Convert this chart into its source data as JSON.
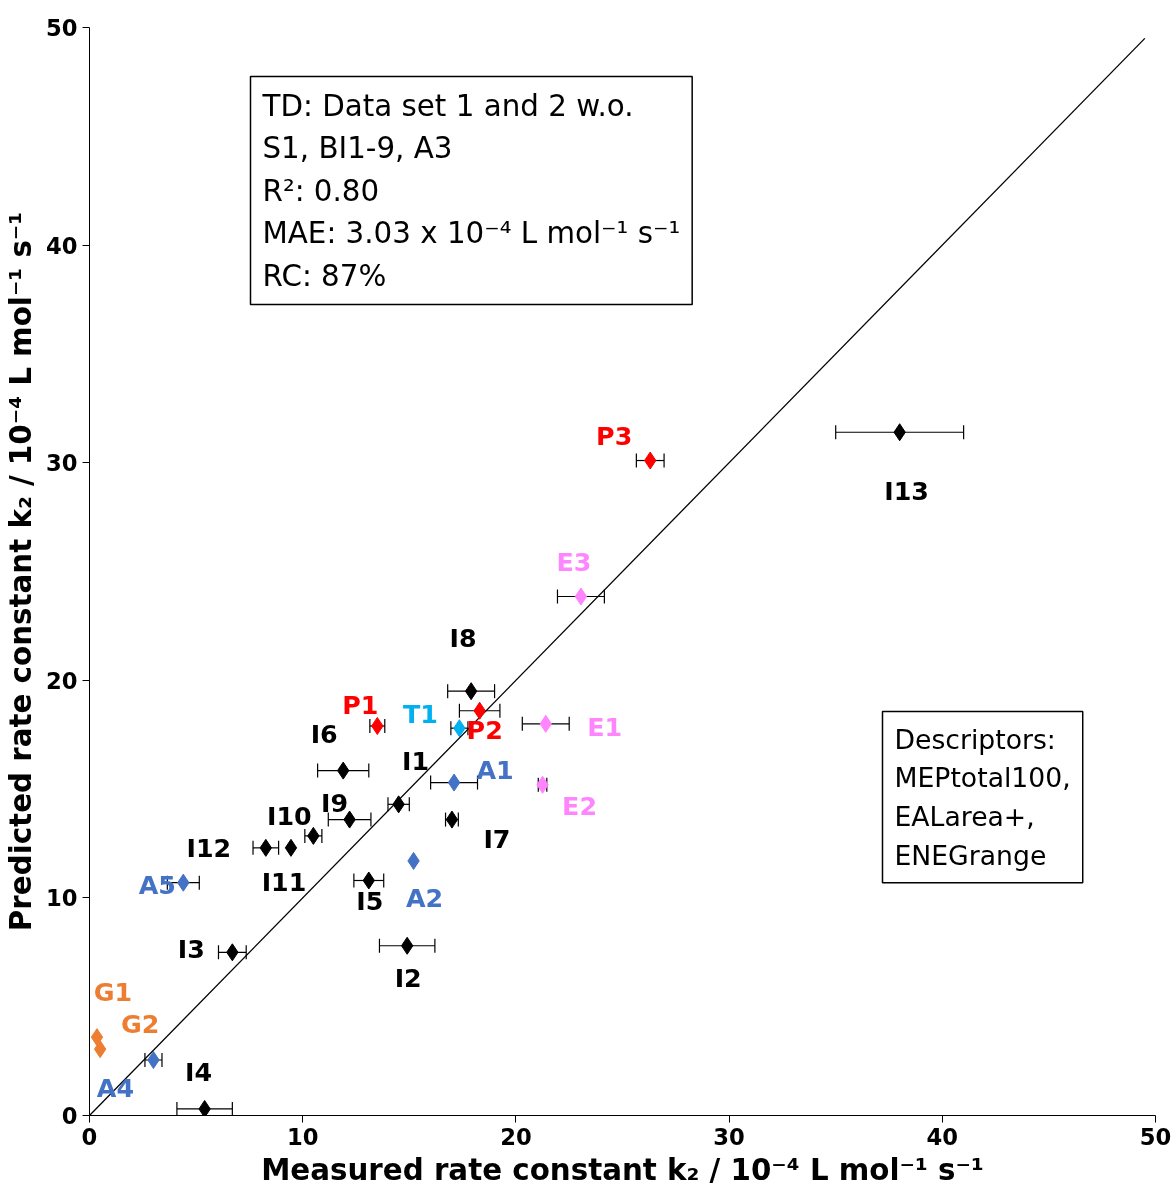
{
  "chart_data": {
    "type": "scatter",
    "xlabel": "Measured rate constant k₂ / 10⁻⁴ L mol⁻¹ s⁻¹",
    "ylabel": "Predicted rate constant k₂ / 10⁻⁴ L mol⁻¹ s⁻¹",
    "xlim": [
      0,
      50
    ],
    "ylim": [
      0,
      50
    ],
    "xticks": [
      0,
      10,
      20,
      30,
      40,
      50
    ],
    "yticks": [
      0,
      10,
      20,
      30,
      40,
      50
    ],
    "grid": false,
    "marker": "diamond",
    "series": [
      {
        "type": "line",
        "marker": "none",
        "color": "#000000",
        "x": [
          0,
          49.5
        ],
        "values": [
          0,
          49.5
        ]
      },
      {
        "color": "#000000",
        "x": [
          38.0,
          17.9,
          11.9,
          14.5,
          12.2,
          10.5,
          17.0,
          8.27,
          9.45,
          13.1,
          6.7,
          14.9,
          5.4
        ],
        "values": [
          31.4,
          19.5,
          15.85,
          14.3,
          13.6,
          12.85,
          13.6,
          12.3,
          12.3,
          10.8,
          7.5,
          7.8,
          0.3
        ],
        "xerrors": [
          3.0,
          1.1,
          1.2,
          0.5,
          1.0,
          0.4,
          0.3,
          0.6,
          null,
          0.7,
          0.65,
          1.3,
          1.3
        ]
      },
      {
        "color": "#ff0000",
        "x": [
          26.3,
          13.5,
          18.3
        ],
        "values": [
          30.1,
          17.9,
          18.6
        ],
        "xerrors": [
          0.65,
          0.35,
          0.95
        ]
      },
      {
        "color": "#00b0f0",
        "x": [
          17.35
        ],
        "values": [
          17.8
        ],
        "xerrors": [
          0.4
        ]
      },
      {
        "color": "#4472c4",
        "x": [
          17.1,
          4.4,
          15.2,
          3.0
        ],
        "values": [
          15.3,
          10.7,
          11.7,
          2.55
        ],
        "xerrors": [
          1.1,
          0.75,
          null,
          0.4
        ]
      },
      {
        "color": "#ff85ff",
        "x": [
          23.05,
          21.4,
          21.25
        ],
        "values": [
          23.85,
          18.0,
          15.2
        ],
        "xerrors": [
          1.1,
          1.1,
          0.2
        ]
      },
      {
        "color": "#ed7d31",
        "x": [
          0.35,
          0.5
        ],
        "values": [
          3.6,
          3.05
        ]
      }
    ],
    "annotations": [
      "TD: Data set 1 and 2 w.o.\nS1, BI1-9, A3\nR²: 0.80\nMAE: 3.03 x 10⁻⁴ L mol⁻¹ s⁻¹\nRC: 87%",
      "Descriptors:\nMEPtotal100,\nEALarea+,\nENEGrange",
      {
        "text": "P3",
        "x": 26.3,
        "y": 30.1
      },
      {
        "text": "I13",
        "x": 38.0,
        "y": 31.4
      },
      {
        "text": "E3",
        "x": 23.05,
        "y": 23.85
      },
      {
        "text": "I8",
        "x": 17.9,
        "y": 19.5
      },
      {
        "text": "P1",
        "x": 13.5,
        "y": 17.9
      },
      {
        "text": "T1",
        "x": 17.35,
        "y": 17.8
      },
      {
        "text": "P2",
        "x": 18.3,
        "y": 18.6
      },
      {
        "text": "E1",
        "x": 21.4,
        "y": 18.0
      },
      {
        "text": "I6",
        "x": 11.9,
        "y": 15.85
      },
      {
        "text": "I1",
        "x": 14.5,
        "y": 14.3
      },
      {
        "text": "A1",
        "x": 17.1,
        "y": 15.3
      },
      {
        "text": "E2",
        "x": 21.25,
        "y": 15.2
      },
      {
        "text": "I9",
        "x": 12.2,
        "y": 13.6
      },
      {
        "text": "I10",
        "x": 10.5,
        "y": 12.85
      },
      {
        "text": "I7",
        "x": 17.0,
        "y": 13.6
      },
      {
        "text": "I12",
        "x": 8.27,
        "y": 12.3
      },
      {
        "text": "I11",
        "x": 9.45,
        "y": 12.3
      },
      {
        "text": "A5",
        "x": 4.4,
        "y": 10.7
      },
      {
        "text": "I5",
        "x": 13.1,
        "y": 10.8
      },
      {
        "text": "A2",
        "x": 15.2,
        "y": 11.7
      },
      {
        "text": "I3",
        "x": 6.7,
        "y": 7.5
      },
      {
        "text": "I2",
        "x": 14.9,
        "y": 7.8
      },
      {
        "text": "G1",
        "x": 0.35,
        "y": 3.6
      },
      {
        "text": "G2",
        "x": 0.5,
        "y": 3.05
      },
      {
        "text": "A4",
        "x": 3.0,
        "y": 2.55
      },
      {
        "text": "I4",
        "x": 5.4,
        "y": 0.3
      }
    ]
  }
}
